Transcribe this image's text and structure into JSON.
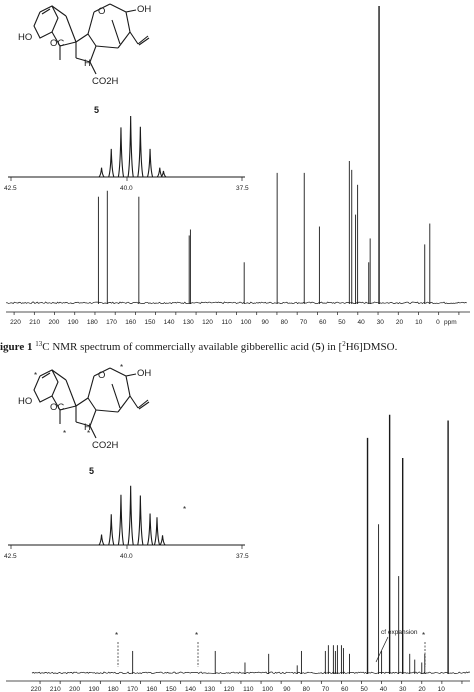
{
  "figure1": {
    "caption_prefix": "igure 1 ",
    "caption_sup": "13",
    "caption_mid1": "C NMR spectrum of commercially available gibberellic acid (",
    "caption_bold": "5",
    "caption_mid2": ") in [",
    "caption_sub": "2",
    "caption_end": "H6]DMSO.",
    "compound_label": "5",
    "atoms": {
      "oh_top": "OH",
      "ho": "HO",
      "oc": "OC",
      "co2h": "CO2H",
      "h": "H",
      "o": "O"
    }
  },
  "figure2": {
    "compound_label": "5",
    "annotation": "cf expansion",
    "star": "*",
    "atoms": {
      "oh_top": "OH",
      "ho": "HO",
      "oc": "OC",
      "co2h": "CO2H",
      "h": "H",
      "o": "O"
    }
  },
  "inset_axis": {
    "ticks": [
      "42.5",
      "40.0",
      "37.5"
    ]
  },
  "main_axis": {
    "ticks": [
      "220",
      "210",
      "200",
      "190",
      "180",
      "170",
      "160",
      "150",
      "140",
      "130",
      "120",
      "110",
      "100",
      "90",
      "80",
      "70",
      "60",
      "50",
      "40",
      "30",
      "20",
      "10",
      "0"
    ],
    "unit": "ppm",
    "ticks2": [
      "220",
      "210",
      "200",
      "190",
      "180",
      "170",
      "160",
      "150",
      "140",
      "130",
      "120",
      "110",
      "100",
      "90",
      "80",
      "70",
      "60",
      "50",
      "40",
      "30",
      "20",
      "10"
    ]
  },
  "chart_data": [
    {
      "type": "line",
      "xlabel": "ppm",
      "xlim": [
        224,
        -4
      ],
      "x_reversed": true,
      "peaks": [
        {
          "x": 178.3,
          "y": 0.36
        },
        {
          "x": 173.9,
          "y": 0.38
        },
        {
          "x": 158.3,
          "y": 0.36
        },
        {
          "x": 133.4,
          "y": 0.23
        },
        {
          "x": 132.8,
          "y": 0.25
        },
        {
          "x": 106.2,
          "y": 0.14
        },
        {
          "x": 89.9,
          "y": 0.44
        },
        {
          "x": 76.5,
          "y": 0.44
        },
        {
          "x": 69.0,
          "y": 0.26
        },
        {
          "x": 54.2,
          "y": 0.48
        },
        {
          "x": 53.0,
          "y": 0.45
        },
        {
          "x": 51.1,
          "y": 0.3
        },
        {
          "x": 50.1,
          "y": 0.4
        },
        {
          "x": 44.6,
          "y": 0.14
        },
        {
          "x": 43.9,
          "y": 0.22
        },
        {
          "x": 39.5,
          "y": 1.0
        },
        {
          "x": 16.9,
          "y": 0.2
        },
        {
          "x": 14.4,
          "y": 0.27
        }
      ]
    },
    {
      "type": "line",
      "title": "inset",
      "xlim": [
        42.5,
        37.5
      ],
      "x_reversed": true,
      "peaks": [
        {
          "x": 40.54,
          "y": 0.14
        },
        {
          "x": 40.33,
          "y": 0.42
        },
        {
          "x": 40.12,
          "y": 0.74
        },
        {
          "x": 39.91,
          "y": 0.91
        },
        {
          "x": 39.7,
          "y": 0.75
        },
        {
          "x": 39.49,
          "y": 0.42
        },
        {
          "x": 39.28,
          "y": 0.14
        },
        {
          "x": 39.2,
          "y": 0.09
        }
      ]
    },
    {
      "type": "line",
      "xlim": [
        224,
        6
      ],
      "x_reversed": true,
      "peaks": [
        {
          "x": 173.9,
          "y": 0.08
        },
        {
          "x": 132.8,
          "y": 0.08
        },
        {
          "x": 118.0,
          "y": 0.04
        },
        {
          "x": 106.2,
          "y": 0.07
        },
        {
          "x": 92.0,
          "y": 0.03
        },
        {
          "x": 89.9,
          "y": 0.08
        },
        {
          "x": 78.0,
          "y": 0.08
        },
        {
          "x": 76.5,
          "y": 0.1
        },
        {
          "x": 74.0,
          "y": 0.1
        },
        {
          "x": 73.0,
          "y": 0.08
        },
        {
          "x": 72.0,
          "y": 0.1
        },
        {
          "x": 70.0,
          "y": 0.1
        },
        {
          "x": 69.0,
          "y": 0.09
        },
        {
          "x": 66.0,
          "y": 0.07
        },
        {
          "x": 57.0,
          "y": 0.82
        },
        {
          "x": 51.5,
          "y": 0.52
        },
        {
          "x": 50.0,
          "y": 0.08
        },
        {
          "x": 46.0,
          "y": 0.9
        },
        {
          "x": 41.5,
          "y": 0.34
        },
        {
          "x": 39.5,
          "y": 0.75
        },
        {
          "x": 36.0,
          "y": 0.07
        },
        {
          "x": 33.5,
          "y": 0.05
        },
        {
          "x": 30.0,
          "y": 0.04
        },
        {
          "x": 28.5,
          "y": 0.07
        },
        {
          "x": 16.9,
          "y": 0.88
        }
      ]
    },
    {
      "type": "line",
      "title": "inset",
      "xlim": [
        42.5,
        37.5
      ],
      "x_reversed": true,
      "peaks": [
        {
          "x": 40.54,
          "y": 0.14
        },
        {
          "x": 40.33,
          "y": 0.41
        },
        {
          "x": 40.12,
          "y": 0.67
        },
        {
          "x": 39.91,
          "y": 0.79
        },
        {
          "x": 39.7,
          "y": 0.66
        },
        {
          "x": 39.49,
          "y": 0.42
        },
        {
          "x": 39.34,
          "y": 0.37
        },
        {
          "x": 39.22,
          "y": 0.13
        }
      ]
    }
  ]
}
